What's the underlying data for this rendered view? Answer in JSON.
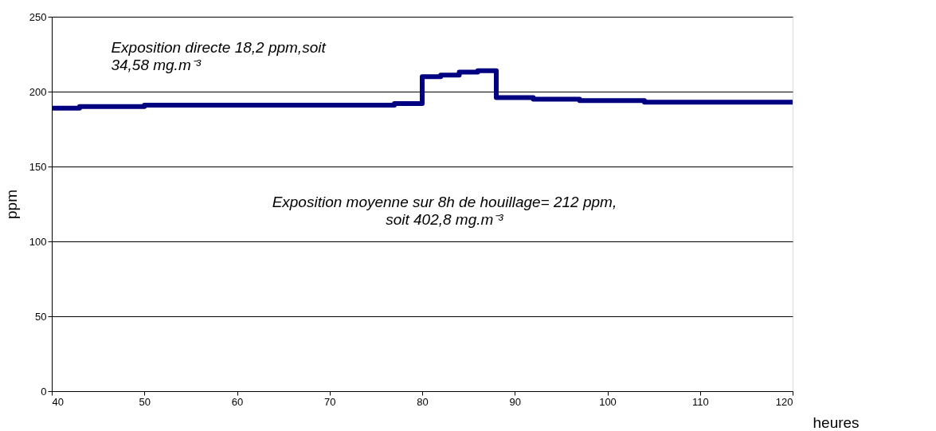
{
  "chart_data": {
    "type": "step",
    "xlabel": "heures",
    "ylabel": "ppm",
    "x": [
      40,
      43,
      50,
      77,
      80,
      82,
      84,
      86,
      88,
      92,
      97,
      104,
      120
    ],
    "series": [
      {
        "color": "#000080",
        "values": [
          189,
          190,
          191,
          192,
          210,
          211,
          213,
          214,
          196,
          195,
          194,
          193,
          193
        ]
      }
    ],
    "xlim": [
      40,
      120
    ],
    "xticks": [
      40,
      50,
      60,
      70,
      80,
      90,
      100,
      110,
      120
    ],
    "ylim": [
      0,
      250
    ],
    "yticks": [
      0,
      50,
      100,
      150,
      200,
      250
    ],
    "grid": "y",
    "marker": "none",
    "line_style": "solid",
    "annotations": [
      "Exposition directe 18,2 ppm,soit\n34,58 mg.m⁻³",
      "Exposition moyenne sur 8h de houillage= 212 ppm,\nsoit 402,8 mg.m⁻³"
    ]
  }
}
